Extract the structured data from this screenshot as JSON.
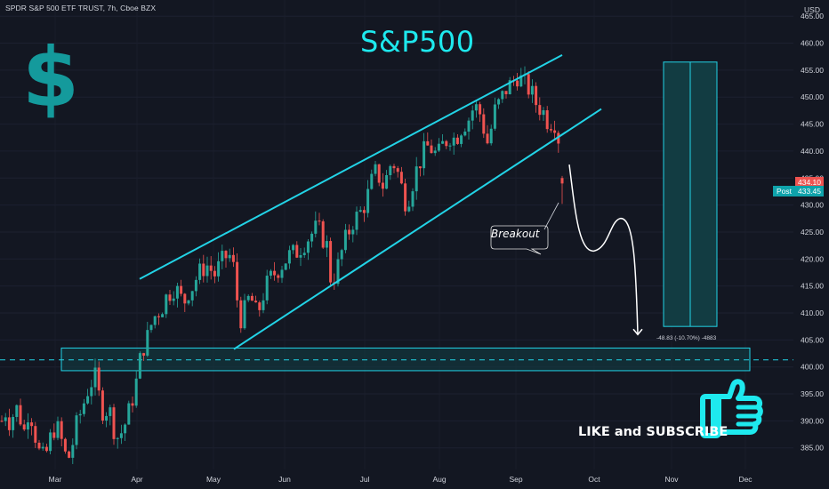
{
  "header": {
    "instrument": "SPDR S&P 500 ETF TRUST, 7h, Cboe BZX",
    "currency": "USD"
  },
  "annotations": {
    "title": "S&P500",
    "dollar_sign": "$",
    "breakout_label": "Breakout",
    "like_text": "LIKE and SUBSCRIBE",
    "measure_label": "-48.83 (-10.70%) -4883",
    "post_label": "Post"
  },
  "price_tags": {
    "last": "434.10",
    "post": "433.45"
  },
  "colors": {
    "background": "#131722",
    "up": "#26a69a",
    "down": "#ef5350",
    "accent": "#1ee9ee",
    "channel": "#22d3e6",
    "projection_fill": "#123c42",
    "text": "#d1d4dc"
  },
  "chart_data": {
    "type": "candlestick",
    "y_axis_label": "USD",
    "ylim": [
      381,
      468
    ],
    "y_ticks": [
      385,
      390,
      395,
      400,
      405,
      410,
      415,
      420,
      425,
      430,
      435,
      440,
      445,
      450,
      455,
      460,
      465
    ],
    "x_tick_labels": [
      "Mar",
      "Apr",
      "May",
      "Jun",
      "Jul",
      "Aug",
      "Sep",
      "Oct",
      "Nov",
      "Dec"
    ],
    "price_path": [
      [
        0,
        390
      ],
      [
        5,
        392
      ],
      [
        10,
        389
      ],
      [
        15,
        393
      ],
      [
        20,
        391
      ],
      [
        25,
        388
      ],
      [
        30,
        392
      ],
      [
        35,
        390
      ],
      [
        40,
        385
      ],
      [
        45,
        383
      ],
      [
        50,
        384
      ],
      [
        55,
        387
      ],
      [
        60,
        389
      ],
      [
        65,
        388
      ],
      [
        70,
        384
      ],
      [
        75,
        383
      ],
      [
        80,
        386
      ],
      [
        85,
        390
      ],
      [
        90,
        392
      ],
      [
        95,
        395
      ],
      [
        100,
        397
      ],
      [
        105,
        398
      ],
      [
        110,
        394
      ],
      [
        115,
        391
      ],
      [
        120,
        393
      ],
      [
        125,
        389
      ],
      [
        130,
        387
      ],
      [
        135,
        388
      ],
      [
        140,
        390
      ],
      [
        145,
        393
      ],
      [
        150,
        396
      ],
      [
        155,
        401
      ],
      [
        160,
        404
      ],
      [
        165,
        406
      ],
      [
        170,
        409
      ],
      [
        175,
        410
      ],
      [
        180,
        411
      ],
      [
        185,
        413
      ],
      [
        190,
        414
      ],
      [
        195,
        415
      ],
      [
        200,
        413
      ],
      [
        205,
        412
      ],
      [
        210,
        414
      ],
      [
        215,
        415
      ],
      [
        220,
        417
      ],
      [
        225,
        418
      ],
      [
        230,
        419
      ],
      [
        235,
        418
      ],
      [
        240,
        417
      ],
      [
        245,
        419
      ],
      [
        250,
        420
      ],
      [
        255,
        421
      ],
      [
        260,
        419
      ],
      [
        265,
        412
      ],
      [
        270,
        408
      ],
      [
        275,
        412
      ],
      [
        280,
        413
      ],
      [
        285,
        410
      ],
      [
        290,
        411
      ],
      [
        295,
        414
      ],
      [
        300,
        416
      ],
      [
        305,
        417
      ],
      [
        310,
        418
      ],
      [
        315,
        419
      ],
      [
        320,
        420
      ],
      [
        325,
        421
      ],
      [
        330,
        421
      ],
      [
        335,
        422
      ],
      [
        340,
        423
      ],
      [
        345,
        424
      ],
      [
        350,
        425
      ],
      [
        355,
        426
      ],
      [
        360,
        424
      ],
      [
        365,
        423
      ],
      [
        370,
        416
      ],
      [
        375,
        417
      ],
      [
        380,
        420
      ],
      [
        385,
        423
      ],
      [
        390,
        425
      ],
      [
        395,
        427
      ],
      [
        400,
        428
      ],
      [
        405,
        429
      ],
      [
        410,
        431
      ],
      [
        415,
        434
      ],
      [
        420,
        436
      ],
      [
        425,
        435
      ],
      [
        430,
        433
      ],
      [
        435,
        437
      ],
      [
        440,
        438
      ],
      [
        445,
        436
      ],
      [
        450,
        433
      ],
      [
        455,
        430
      ],
      [
        460,
        433
      ],
      [
        465,
        436
      ],
      [
        470,
        438
      ],
      [
        475,
        440
      ],
      [
        480,
        441
      ],
      [
        485,
        440
      ],
      [
        490,
        439
      ],
      [
        495,
        441
      ],
      [
        500,
        442
      ],
      [
        505,
        443
      ],
      [
        510,
        442
      ],
      [
        515,
        444
      ],
      [
        520,
        445
      ],
      [
        525,
        446
      ],
      [
        530,
        448
      ],
      [
        535,
        448
      ],
      [
        540,
        446
      ],
      [
        545,
        441
      ],
      [
        550,
        444
      ],
      [
        555,
        448
      ],
      [
        560,
        449
      ],
      [
        565,
        451
      ],
      [
        570,
        452
      ],
      [
        575,
        453
      ],
      [
        580,
        454
      ],
      [
        585,
        453
      ],
      [
        590,
        452
      ],
      [
        595,
        451
      ],
      [
        600,
        449
      ],
      [
        605,
        448
      ],
      [
        610,
        447
      ],
      [
        615,
        445
      ],
      [
        620,
        446
      ],
      [
        625,
        444
      ],
      [
        630,
        434
      ]
    ],
    "channel_upper": [
      [
        0,
        416
      ],
      [
        630,
        458
      ]
    ],
    "channel_lower": [
      [
        0,
        403
      ],
      [
        630,
        440
      ]
    ],
    "channel_mid": [
      [
        90,
        448
      ],
      [
        400,
        457
      ]
    ],
    "support_zone": [
      399.3,
      403.5
    ],
    "support_level": 401.3,
    "projection_box": {
      "top": 456.5,
      "bottom": 407.5
    },
    "forecast_path": [
      [
        640,
        434
      ],
      [
        648,
        430
      ],
      [
        660,
        423
      ],
      [
        668,
        421
      ],
      [
        680,
        425
      ],
      [
        693,
        426
      ],
      [
        705,
        421
      ],
      [
        715,
        410
      ]
    ]
  }
}
